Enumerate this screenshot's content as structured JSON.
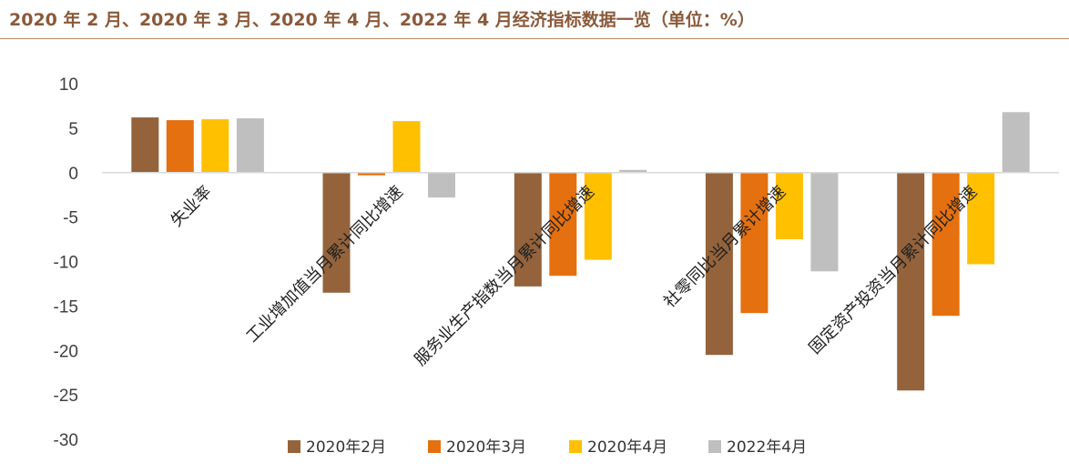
{
  "title": "2020 年 2 月、2020 年 3 月、2020 年 4 月、2022 年 4 月经济指标数据一览（单位：%）",
  "chart_data": {
    "type": "bar",
    "title": "2020 年 2 月、2020 年 3 月、2020 年 4 月、2022 年 4 月经济指标数据一览（单位：%）",
    "categories": [
      "失业率",
      "工业增加值当月累计同比增速",
      "服务业生产指数当月累计同比增速",
      "社零同比当月累计增速",
      "固定资产投资当月累计同比增速"
    ],
    "series": [
      {
        "name": "2020年2月",
        "color": "#94633b",
        "values": [
          6.2,
          -13.5,
          -12.8,
          -20.5,
          -24.5
        ]
      },
      {
        "name": "2020年3月",
        "color": "#e5700f",
        "values": [
          5.9,
          -0.3,
          -11.6,
          -15.8,
          -16.1
        ]
      },
      {
        "name": "2020年4月",
        "color": "#ffc000",
        "values": [
          6.0,
          5.8,
          -9.8,
          -7.5,
          -10.3
        ]
      },
      {
        "name": "2022年4月",
        "color": "#bfbfbf",
        "values": [
          6.1,
          -2.8,
          0.3,
          -11.1,
          6.8
        ]
      }
    ],
    "yticks": [
      10,
      5,
      0,
      -5,
      -10,
      -15,
      -20,
      -25,
      -30
    ],
    "ylim": [
      -30,
      10
    ],
    "legend_position": "bottom",
    "grid": false
  }
}
